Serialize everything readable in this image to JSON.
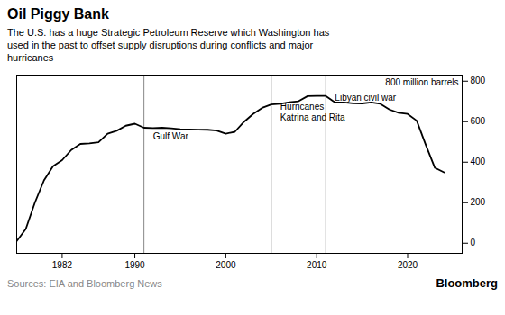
{
  "chart_data": {
    "type": "line",
    "title": "Oil Piggy Bank",
    "subtitle": "The U.S. has a huge Strategic Petroleum Reserve which Washington has\nused in the past to offset supply disruptions during conflicts and major\nhurricanes",
    "ylabel": "800 million barrels",
    "source": "Sources: EIA and Bloomberg News",
    "branding": "Bloomberg",
    "x": [
      1977,
      1978,
      1979,
      1980,
      1981,
      1982,
      1983,
      1984,
      1985,
      1986,
      1987,
      1988,
      1989,
      1990,
      1991,
      1992,
      1993,
      1994,
      1995,
      1996,
      1997,
      1998,
      1999,
      2000,
      2001,
      2002,
      2003,
      2004,
      2005,
      2006,
      2007,
      2008,
      2009,
      2010,
      2011,
      2012,
      2013,
      2014,
      2015,
      2016,
      2017,
      2018,
      2019,
      2020,
      2021,
      2022,
      2023,
      2024
    ],
    "values": [
      10,
      70,
      200,
      310,
      380,
      410,
      460,
      490,
      493,
      498,
      541,
      555,
      580,
      590,
      570,
      568,
      570,
      567,
      563,
      562,
      561,
      560,
      556,
      541,
      550,
      599,
      638,
      668,
      685,
      688,
      696,
      701,
      726,
      727,
      727,
      696,
      695,
      691,
      690,
      695,
      688,
      660,
      644,
      638,
      605,
      485,
      372,
      350
    ],
    "xlim": [
      1977,
      2026
    ],
    "ylim": [
      -50,
      830
    ],
    "xticks": [
      1982,
      1990,
      2000,
      2010,
      2020
    ],
    "yticks": [
      0,
      200,
      400,
      600,
      800
    ],
    "grid": false,
    "annotations": [
      {
        "x": 1991,
        "text": "Gulf War",
        "text_x": 1992,
        "text_y": 530
      },
      {
        "x": 2005,
        "text": "Hurricanes\nKatrina and Rita",
        "text_x": 2006,
        "text_y": 650
      },
      {
        "x": 2011,
        "text": "Libyan civil war",
        "text_x": 2012,
        "text_y": 720
      }
    ]
  }
}
